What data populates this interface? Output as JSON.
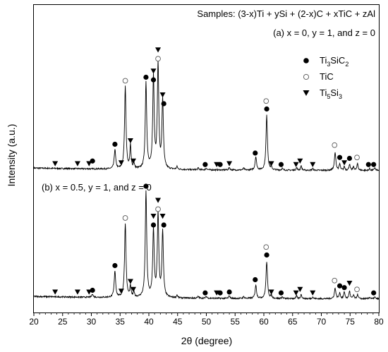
{
  "chart_data": {
    "type": "line",
    "title": "Samples: (3-x)Ti + ySi + (2-x)C + xTiC + zAl",
    "xlabel": "2θ (degree)",
    "ylabel": "Intensity (a.u.)",
    "xlim": [
      20,
      80
    ],
    "xticks": [
      20,
      25,
      30,
      35,
      40,
      45,
      50,
      55,
      60,
      65,
      70,
      75,
      80
    ],
    "grid": false,
    "legend_placement": "top-right",
    "legend": [
      {
        "marker": "filled-circle",
        "name": "Ti3SiC2",
        "base": "Ti",
        "sub1": "3",
        "mid": "SiC",
        "sub2": "2"
      },
      {
        "marker": "open-circle",
        "name": "TiC",
        "base": "TiC",
        "sub1": "",
        "mid": "",
        "sub2": ""
      },
      {
        "marker": "filled-triangle",
        "name": "Ti5Si3",
        "base": "Ti",
        "sub1": "5",
        "mid": "Si",
        "sub2": "3"
      }
    ],
    "series": [
      {
        "name": "(a) x = 0, y = 1, and z = 0",
        "baseline": 3,
        "peaks": [
          {
            "x": 34.1,
            "y": 22,
            "w": 0.15
          },
          {
            "x": 35.9,
            "y": 94,
            "w": 0.15
          },
          {
            "x": 36.8,
            "y": 26,
            "w": 0.12
          },
          {
            "x": 37.4,
            "y": 6,
            "w": 0.12
          },
          {
            "x": 39.5,
            "y": 98,
            "w": 0.15
          },
          {
            "x": 40.8,
            "y": 104,
            "w": 0.15
          },
          {
            "x": 41.6,
            "y": 118,
            "w": 0.15
          },
          {
            "x": 42.4,
            "y": 78,
            "w": 0.15
          },
          {
            "x": 44.9,
            "y": 3,
            "w": 0.12
          },
          {
            "x": 48.6,
            "y": 2,
            "w": 0.12
          },
          {
            "x": 50.0,
            "y": 2,
            "w": 0.12
          },
          {
            "x": 54.0,
            "y": 3,
            "w": 0.12
          },
          {
            "x": 56.5,
            "y": 2,
            "w": 0.12
          },
          {
            "x": 58.6,
            "y": 15,
            "w": 0.15
          },
          {
            "x": 60.5,
            "y": 62,
            "w": 0.15
          },
          {
            "x": 61.3,
            "y": 3,
            "w": 0.12
          },
          {
            "x": 63.2,
            "y": 2,
            "w": 0.12
          },
          {
            "x": 65.7,
            "y": 3,
            "w": 0.12
          },
          {
            "x": 66.5,
            "y": 5,
            "w": 0.12
          },
          {
            "x": 68.5,
            "y": 2,
            "w": 0.12
          },
          {
            "x": 72.4,
            "y": 20,
            "w": 0.15
          },
          {
            "x": 73.2,
            "y": 7,
            "w": 0.12
          },
          {
            "x": 74.0,
            "y": 4,
            "w": 0.12
          },
          {
            "x": 74.9,
            "y": 7,
            "w": 0.12
          },
          {
            "x": 75.6,
            "y": 4,
            "w": 0.12
          },
          {
            "x": 76.3,
            "y": 8,
            "w": 0.12
          },
          {
            "x": 78.4,
            "y": 2,
            "w": 0.12
          },
          {
            "x": 79.3,
            "y": 3,
            "w": 0.12
          }
        ],
        "markers": [
          {
            "x": 23.7,
            "y": 4,
            "m": "tri"
          },
          {
            "x": 27.6,
            "y": 4,
            "m": "tri"
          },
          {
            "x": 29.6,
            "y": 4,
            "m": "tri"
          },
          {
            "x": 30.2,
            "y": 7,
            "m": "dot"
          },
          {
            "x": 34.1,
            "y": 26,
            "m": "dot"
          },
          {
            "x": 35.2,
            "y": 5,
            "m": "tri"
          },
          {
            "x": 35.9,
            "y": 98,
            "m": "ring"
          },
          {
            "x": 36.8,
            "y": 30,
            "m": "tri"
          },
          {
            "x": 37.3,
            "y": 7,
            "m": "tri"
          },
          {
            "x": 39.5,
            "y": 102,
            "m": "dot"
          },
          {
            "x": 40.8,
            "y": 109,
            "m": "tri"
          },
          {
            "x": 40.8,
            "y": 99,
            "m": "dot"
          },
          {
            "x": 41.6,
            "y": 133,
            "m": "tri"
          },
          {
            "x": 41.6,
            "y": 123,
            "m": "ring"
          },
          {
            "x": 42.4,
            "y": 82,
            "m": "tri"
          },
          {
            "x": 42.6,
            "y": 72,
            "m": "dot"
          },
          {
            "x": 49.8,
            "y": 3,
            "m": "dot"
          },
          {
            "x": 51.8,
            "y": 3,
            "m": "tri"
          },
          {
            "x": 52.4,
            "y": 3,
            "m": "dot"
          },
          {
            "x": 54.0,
            "y": 4,
            "m": "tri"
          },
          {
            "x": 58.5,
            "y": 16,
            "m": "dot"
          },
          {
            "x": 60.4,
            "y": 75,
            "m": "ring"
          },
          {
            "x": 60.5,
            "y": 66,
            "m": "dot"
          },
          {
            "x": 61.3,
            "y": 4,
            "m": "tri"
          },
          {
            "x": 63.0,
            "y": 3,
            "m": "dot"
          },
          {
            "x": 65.6,
            "y": 3,
            "m": "tri"
          },
          {
            "x": 66.3,
            "y": 7,
            "m": "tri"
          },
          {
            "x": 68.5,
            "y": 3,
            "m": "tri"
          },
          {
            "x": 72.3,
            "y": 25,
            "m": "ring"
          },
          {
            "x": 73.2,
            "y": 11,
            "m": "dot"
          },
          {
            "x": 74.0,
            "y": 5,
            "m": "tri"
          },
          {
            "x": 74.9,
            "y": 10,
            "m": "dot"
          },
          {
            "x": 76.2,
            "y": 11,
            "m": "ring"
          },
          {
            "x": 78.2,
            "y": 3,
            "m": "dot"
          },
          {
            "x": 79.1,
            "y": 3,
            "m": "dot"
          }
        ]
      },
      {
        "name": "(b) x = 0.5, y = 1, and  z = 0",
        "baseline": 3,
        "peaks": [
          {
            "x": 30.2,
            "y": 4,
            "w": 0.12
          },
          {
            "x": 34.1,
            "y": 30,
            "w": 0.15
          },
          {
            "x": 35.9,
            "y": 84,
            "w": 0.15
          },
          {
            "x": 36.8,
            "y": 12,
            "w": 0.12
          },
          {
            "x": 37.4,
            "y": 6,
            "w": 0.12
          },
          {
            "x": 39.5,
            "y": 120,
            "w": 0.15
          },
          {
            "x": 40.8,
            "y": 76,
            "w": 0.15
          },
          {
            "x": 41.6,
            "y": 94,
            "w": 0.15
          },
          {
            "x": 42.4,
            "y": 74,
            "w": 0.15
          },
          {
            "x": 44.9,
            "y": 3,
            "w": 0.12
          },
          {
            "x": 48.6,
            "y": 2,
            "w": 0.12
          },
          {
            "x": 50.0,
            "y": 2,
            "w": 0.12
          },
          {
            "x": 54.0,
            "y": 3,
            "w": 0.12
          },
          {
            "x": 56.5,
            "y": 2,
            "w": 0.12
          },
          {
            "x": 58.6,
            "y": 15,
            "w": 0.15
          },
          {
            "x": 60.5,
            "y": 42,
            "w": 0.15
          },
          {
            "x": 61.3,
            "y": 3,
            "w": 0.12
          },
          {
            "x": 63.2,
            "y": 2,
            "w": 0.12
          },
          {
            "x": 65.7,
            "y": 3,
            "w": 0.12
          },
          {
            "x": 66.5,
            "y": 5,
            "w": 0.12
          },
          {
            "x": 68.5,
            "y": 2,
            "w": 0.12
          },
          {
            "x": 72.4,
            "y": 12,
            "w": 0.15
          },
          {
            "x": 73.2,
            "y": 7,
            "w": 0.12
          },
          {
            "x": 74.0,
            "y": 8,
            "w": 0.12
          },
          {
            "x": 74.9,
            "y": 9,
            "w": 0.12
          },
          {
            "x": 75.6,
            "y": 4,
            "w": 0.12
          },
          {
            "x": 76.3,
            "y": 5,
            "w": 0.12
          },
          {
            "x": 78.4,
            "y": 2,
            "w": 0.12
          },
          {
            "x": 79.3,
            "y": 2,
            "w": 0.12
          }
        ],
        "markers": [
          {
            "x": 23.7,
            "y": 4,
            "m": "tri"
          },
          {
            "x": 27.6,
            "y": 4,
            "m": "tri"
          },
          {
            "x": 29.6,
            "y": 4,
            "m": "tri"
          },
          {
            "x": 30.2,
            "y": 6,
            "m": "dot"
          },
          {
            "x": 34.1,
            "y": 34,
            "m": "dot"
          },
          {
            "x": 35.2,
            "y": 5,
            "m": "tri"
          },
          {
            "x": 35.9,
            "y": 88,
            "m": "ring"
          },
          {
            "x": 36.8,
            "y": 16,
            "m": "tri"
          },
          {
            "x": 37.3,
            "y": 7,
            "m": "tri"
          },
          {
            "x": 39.5,
            "y": 124,
            "m": "dot"
          },
          {
            "x": 40.8,
            "y": 90,
            "m": "tri"
          },
          {
            "x": 40.8,
            "y": 80,
            "m": "dot"
          },
          {
            "x": 41.6,
            "y": 108,
            "m": "tri"
          },
          {
            "x": 41.6,
            "y": 98,
            "m": "ring"
          },
          {
            "x": 42.4,
            "y": 90,
            "m": "tri"
          },
          {
            "x": 42.6,
            "y": 80,
            "m": "dot"
          },
          {
            "x": 49.8,
            "y": 3,
            "m": "dot"
          },
          {
            "x": 51.8,
            "y": 3,
            "m": "tri"
          },
          {
            "x": 52.4,
            "y": 3,
            "m": "dot"
          },
          {
            "x": 54.0,
            "y": 4,
            "m": "dot"
          },
          {
            "x": 58.5,
            "y": 18,
            "m": "dot"
          },
          {
            "x": 60.4,
            "y": 55,
            "m": "ring"
          },
          {
            "x": 60.5,
            "y": 46,
            "m": "dot"
          },
          {
            "x": 61.3,
            "y": 4,
            "m": "tri"
          },
          {
            "x": 63.0,
            "y": 3,
            "m": "dot"
          },
          {
            "x": 65.6,
            "y": 3,
            "m": "tri"
          },
          {
            "x": 66.3,
            "y": 7,
            "m": "tri"
          },
          {
            "x": 68.5,
            "y": 3,
            "m": "tri"
          },
          {
            "x": 72.3,
            "y": 17,
            "m": "ring"
          },
          {
            "x": 73.2,
            "y": 11,
            "m": "dot"
          },
          {
            "x": 74.0,
            "y": 9,
            "m": "dot"
          },
          {
            "x": 74.9,
            "y": 14,
            "m": "tri"
          },
          {
            "x": 76.2,
            "y": 7,
            "m": "ring"
          },
          {
            "x": 79.1,
            "y": 3,
            "m": "dot"
          }
        ]
      }
    ]
  }
}
